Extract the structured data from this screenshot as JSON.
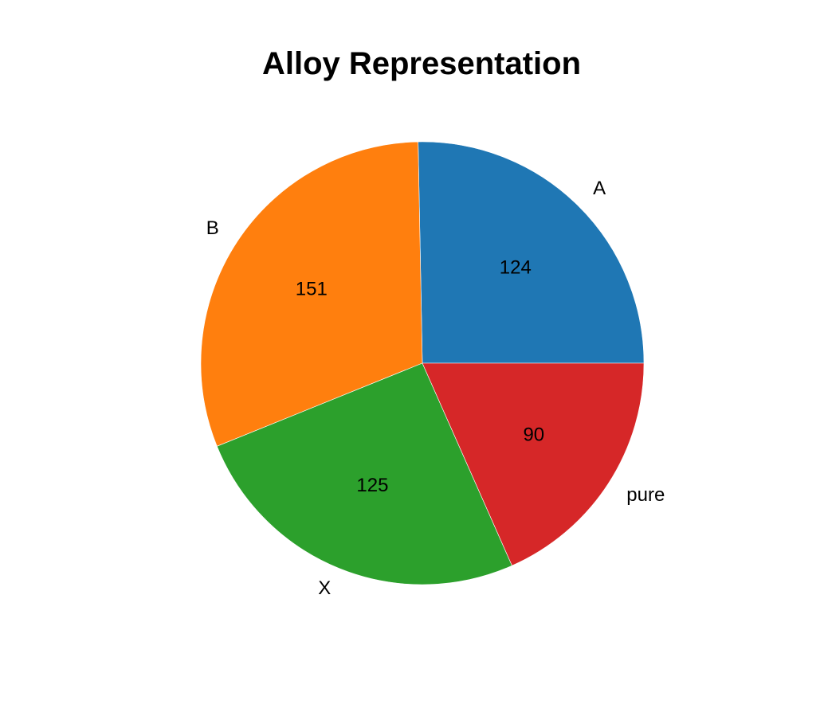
{
  "chart_data": {
    "type": "pie",
    "title": "Alloy Representation",
    "categories": [
      "A",
      "B",
      "X",
      "pure"
    ],
    "values": [
      124,
      151,
      125,
      90
    ],
    "colors": [
      "#1f77b4",
      "#ff7f0e",
      "#2ca02c",
      "#d62728"
    ],
    "start_angle_deg": 0,
    "direction": "counterclockwise",
    "legend": "none"
  }
}
